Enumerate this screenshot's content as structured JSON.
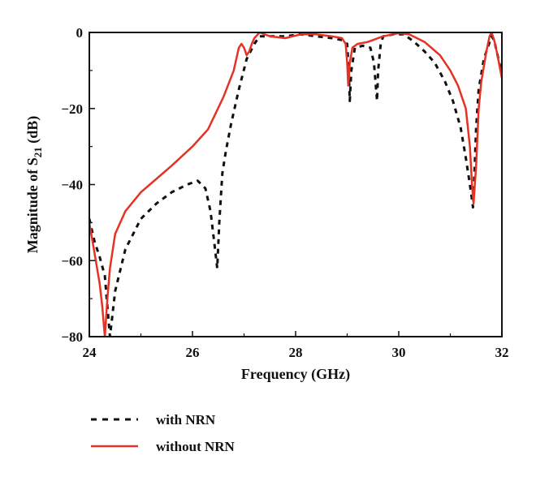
{
  "chart_data": {
    "type": "line",
    "xlabel": "Frequency (GHz)",
    "ylabel": {
      "prefix": "Magnitude of S",
      "subscript": "21",
      "suffix": " (dB)"
    },
    "xlim": [
      24,
      32
    ],
    "ylim": [
      -80,
      0
    ],
    "xticks": [
      24,
      26,
      28,
      30,
      32
    ],
    "yticks": [
      -80,
      -60,
      -40,
      -20,
      0
    ],
    "xtick_labels": [
      "24",
      "26",
      "28",
      "30",
      "32"
    ],
    "ytick_labels": [
      "−80",
      "−60",
      "−40",
      "−20",
      "0"
    ],
    "grid": false,
    "legend_position": "bottom-left",
    "series": [
      {
        "name": "with NRN",
        "color": "#111111",
        "style": "dashed",
        "x": [
          24.0,
          24.1,
          24.2,
          24.3,
          24.35,
          24.4,
          24.5,
          24.7,
          25.0,
          25.3,
          25.6,
          25.9,
          26.1,
          26.25,
          26.35,
          26.42,
          26.48,
          26.52,
          26.58,
          26.65,
          26.75,
          26.9,
          27.05,
          27.2,
          27.3,
          27.5,
          27.8,
          28.1,
          28.4,
          28.7,
          28.9,
          29.0,
          29.03,
          29.05,
          29.08,
          29.15,
          29.3,
          29.45,
          29.52,
          29.56,
          29.58,
          29.6,
          29.65,
          29.7,
          29.9,
          30.1,
          30.3,
          30.5,
          30.7,
          30.9,
          31.05,
          31.2,
          31.3,
          31.38,
          31.42,
          31.44,
          31.46,
          31.5,
          31.55,
          31.65,
          31.75,
          31.8,
          31.85,
          31.9,
          32.0
        ],
        "y": [
          -49,
          -55,
          -59,
          -64,
          -72,
          -80,
          -68,
          -57,
          -49,
          -45,
          -42,
          -40,
          -39,
          -41,
          -47,
          -55,
          -62,
          -50,
          -37,
          -31,
          -24,
          -15,
          -7,
          -3,
          -1,
          -1,
          -1,
          -0.5,
          -1,
          -1.5,
          -2,
          -3,
          -10,
          -18,
          -10,
          -4,
          -3.5,
          -4,
          -8,
          -15,
          -18,
          -10,
          -3,
          -1,
          -0.5,
          -0.5,
          -2.5,
          -5,
          -8,
          -13,
          -18,
          -25,
          -33,
          -40,
          -44,
          -46,
          -40,
          -25,
          -15,
          -7,
          -3,
          -1,
          -2,
          -5,
          -11
        ]
      },
      {
        "name": "without NRN",
        "color": "#e53225",
        "style": "solid",
        "x": [
          24.0,
          24.1,
          24.2,
          24.25,
          24.3,
          24.35,
          24.4,
          24.5,
          24.7,
          25.0,
          25.3,
          25.6,
          26.0,
          26.3,
          26.6,
          26.8,
          26.9,
          26.95,
          27.0,
          27.05,
          27.1,
          27.15,
          27.2,
          27.3,
          27.5,
          27.8,
          28.1,
          28.4,
          28.7,
          28.9,
          28.97,
          29.0,
          29.02,
          29.05,
          29.1,
          29.2,
          29.4,
          29.7,
          30.0,
          30.2,
          30.5,
          30.8,
          31.0,
          31.15,
          31.3,
          31.38,
          31.42,
          31.45,
          31.5,
          31.55,
          31.6,
          31.7,
          31.76,
          31.8,
          31.85,
          31.9,
          32.0
        ],
        "y": [
          -50,
          -58,
          -66,
          -72,
          -80,
          -70,
          -62,
          -53,
          -47,
          -42,
          -38.5,
          -35,
          -30,
          -25.5,
          -17,
          -10,
          -4,
          -3,
          -4,
          -6,
          -5,
          -3,
          -1.5,
          0,
          -1,
          -1.5,
          -0.5,
          -0.5,
          -1,
          -1.5,
          -3,
          -8,
          -14,
          -8,
          -4,
          -3,
          -2.5,
          -1,
          -0.2,
          -0.5,
          -2.5,
          -6,
          -10,
          -14,
          -20,
          -30,
          -40,
          -45,
          -35,
          -20,
          -13,
          -5,
          -1,
          0,
          -2,
          -5,
          -12
        ]
      }
    ]
  }
}
